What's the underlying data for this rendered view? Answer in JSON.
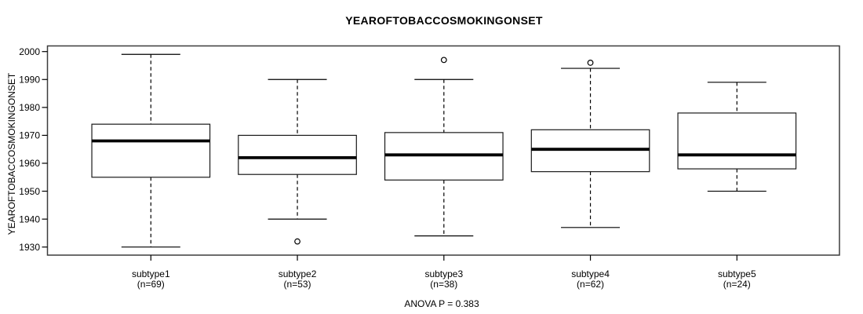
{
  "chart_data": {
    "type": "boxplot",
    "title": "YEAROFTOBACCOSMOKINGONSET",
    "ylabel": "YEAROFTOBACCOSMOKINGONSET",
    "footer": "ANOVA P = 0.383",
    "ylim": [
      1927,
      2002
    ],
    "yticks": [
      1930,
      1940,
      1950,
      1960,
      1970,
      1980,
      1990,
      2000
    ],
    "grid": false,
    "legend": "none",
    "colors": {
      "stroke": "#000000",
      "box_fill": "#ffffff",
      "background": "#ffffff"
    },
    "groups": [
      {
        "label": "subtype1",
        "n": 69,
        "n_label": "(n=69)",
        "whisker_low": 1930,
        "q1": 1955,
        "median": 1968,
        "q3": 1974,
        "whisker_high": 1999,
        "outliers": []
      },
      {
        "label": "subtype2",
        "n": 53,
        "n_label": "(n=53)",
        "whisker_low": 1940,
        "q1": 1956,
        "median": 1962,
        "q3": 1970,
        "whisker_high": 1990,
        "outliers": [
          1932
        ]
      },
      {
        "label": "subtype3",
        "n": 38,
        "n_label": "(n=38)",
        "whisker_low": 1934,
        "q1": 1954,
        "median": 1963,
        "q3": 1971,
        "whisker_high": 1990,
        "outliers": [
          1997
        ]
      },
      {
        "label": "subtype4",
        "n": 62,
        "n_label": "(n=62)",
        "whisker_low": 1937,
        "q1": 1957,
        "median": 1965,
        "q3": 1972,
        "whisker_high": 1994,
        "outliers": [
          1996
        ]
      },
      {
        "label": "subtype5",
        "n": 24,
        "n_label": "(n=24)",
        "whisker_low": 1950,
        "q1": 1958,
        "median": 1963,
        "q3": 1978,
        "whisker_high": 1989,
        "outliers": []
      }
    ]
  }
}
